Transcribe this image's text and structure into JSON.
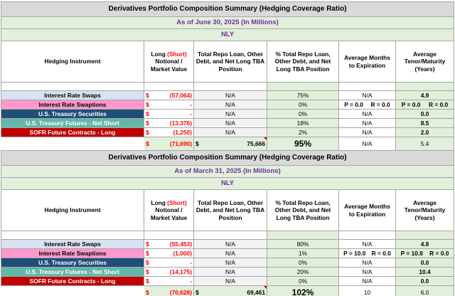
{
  "tables": [
    {
      "title": "Derivatives Portfolio Composition Summary (Hedging Coverage Ratio)",
      "date": "As of June 30, 2025 (In Millions)",
      "company": "NLY",
      "headers": {
        "instrument": "Hedging Instrument",
        "notional_pre": "Long ",
        "notional_short": "(Short)",
        "notional_post": " Notional / Market Value",
        "repo": "Total Repo Loan, Other Debt, and Net Long TBA Position",
        "pct": "% Total Repo Loan, Other Debt, and Net Long TBA Position",
        "months": "Average Months to Expiration",
        "tenor": "Average Tenor/Maturity (Years)"
      },
      "rows": [
        {
          "instrument": "Interest Rate Swaps",
          "dollar": "$",
          "notional": "(57,064)",
          "repo": "N/A",
          "pct": "75%",
          "months": "N/A",
          "months_r": "",
          "tenor": "4.9",
          "tenor_r": ""
        },
        {
          "instrument": "Interest Rate Swaptions",
          "dollar": "$",
          "notional": "-",
          "repo": "N/A",
          "pct": "0%",
          "months": "P = 0.0",
          "months_r": "R = 0.0",
          "tenor": "P = 0.0",
          "tenor_r": "R = 0.0"
        },
        {
          "instrument": "U.S. Treasury Securities",
          "dollar": "$",
          "notional": "-",
          "repo": "N/A",
          "pct": "0%",
          "months": "N/A",
          "months_r": "",
          "tenor": "0.0",
          "tenor_r": ""
        },
        {
          "instrument": "U.S. Treasury Futures - Net Short",
          "dollar": "$",
          "notional": "(13,376)",
          "repo": "N/A",
          "pct": "18%",
          "months": "N/A",
          "months_r": "",
          "tenor": "8.5",
          "tenor_r": ""
        },
        {
          "instrument": "SOFR Future Contracts - Long",
          "dollar": "$",
          "notional": "(1,250)",
          "repo": "N/A",
          "pct": "2%",
          "months": "N/A",
          "months_r": "",
          "tenor": "2.0",
          "tenor_r": ""
        }
      ],
      "total": {
        "dollar": "$",
        "notional": "(71,690)",
        "repo_dollar": "$",
        "repo": "75,666",
        "pct": "95%",
        "months": "N/A",
        "tenor": "5.4"
      }
    },
    {
      "title": "Derivatives Portfolio Composition Summary (Hedging Coverage Ratio)",
      "date": "As of March 31, 2025 (In Millions)",
      "company": "NLY",
      "headers": {
        "instrument": "Hedging Instrument",
        "notional_pre": "Long ",
        "notional_short": "(Short)",
        "notional_post": " Notional / Market Value",
        "repo": "Total Repo Loan, Other Debt, and Net Long TBA Position",
        "pct": "% Total Repo Loan, Other Debt, and Net Long TBA Position",
        "months": "Average Months to Expiration",
        "tenor": "Average Tenor/Maturity (Years)"
      },
      "rows": [
        {
          "instrument": "Interest Rate Swaps",
          "dollar": "$",
          "notional": "(55,453)",
          "repo": "N/A",
          "pct": "80%",
          "months": "N/A",
          "months_r": "",
          "tenor": "4.8",
          "tenor_r": ""
        },
        {
          "instrument": "Interest Rate Swaptions",
          "dollar": "$",
          "notional": "(1,000)",
          "repo": "N/A",
          "pct": "1%",
          "months": "P = 10.0",
          "months_r": "R = 0.0",
          "tenor": "P = 10.8",
          "tenor_r": "R = 0.0"
        },
        {
          "instrument": "U.S. Treasury Securities",
          "dollar": "$",
          "notional": "-",
          "repo": "N/A",
          "pct": "0%",
          "months": "N/A",
          "months_r": "",
          "tenor": "0.0",
          "tenor_r": ""
        },
        {
          "instrument": "U.S. Treasury Futures - Net Short",
          "dollar": "$",
          "notional": "(14,175)",
          "repo": "N/A",
          "pct": "20%",
          "months": "N/A",
          "months_r": "",
          "tenor": "10.4",
          "tenor_r": ""
        },
        {
          "instrument": "SOFR Future Contracts - Long",
          "dollar": "$",
          "notional": "-",
          "repo": "N/A",
          "pct": "0%",
          "months": "N/A",
          "months_r": "",
          "tenor": "0.0",
          "tenor_r": ""
        }
      ],
      "total": {
        "dollar": "$",
        "notional": "(70,628)",
        "repo_dollar": "$",
        "repo": "69,461",
        "pct": "102%",
        "months": "10",
        "tenor": "6.0"
      }
    }
  ],
  "row_styles": [
    "c-irs",
    "c-swpt",
    "c-ust",
    "c-utf",
    "c-sofr"
  ],
  "colors": {
    "title_bg": "#d9d9d9",
    "date_text": "#7030a0",
    "green_bg": "#e2efda",
    "negative": "#ff0000",
    "interest_rate_swaps": "#d9e1f2",
    "interest_rate_swaptions": "#ff99cc",
    "us_treasury_securities": "#1f4e79",
    "us_treasury_futures": "#63b7a9",
    "sofr_future_contracts": "#c00000"
  }
}
